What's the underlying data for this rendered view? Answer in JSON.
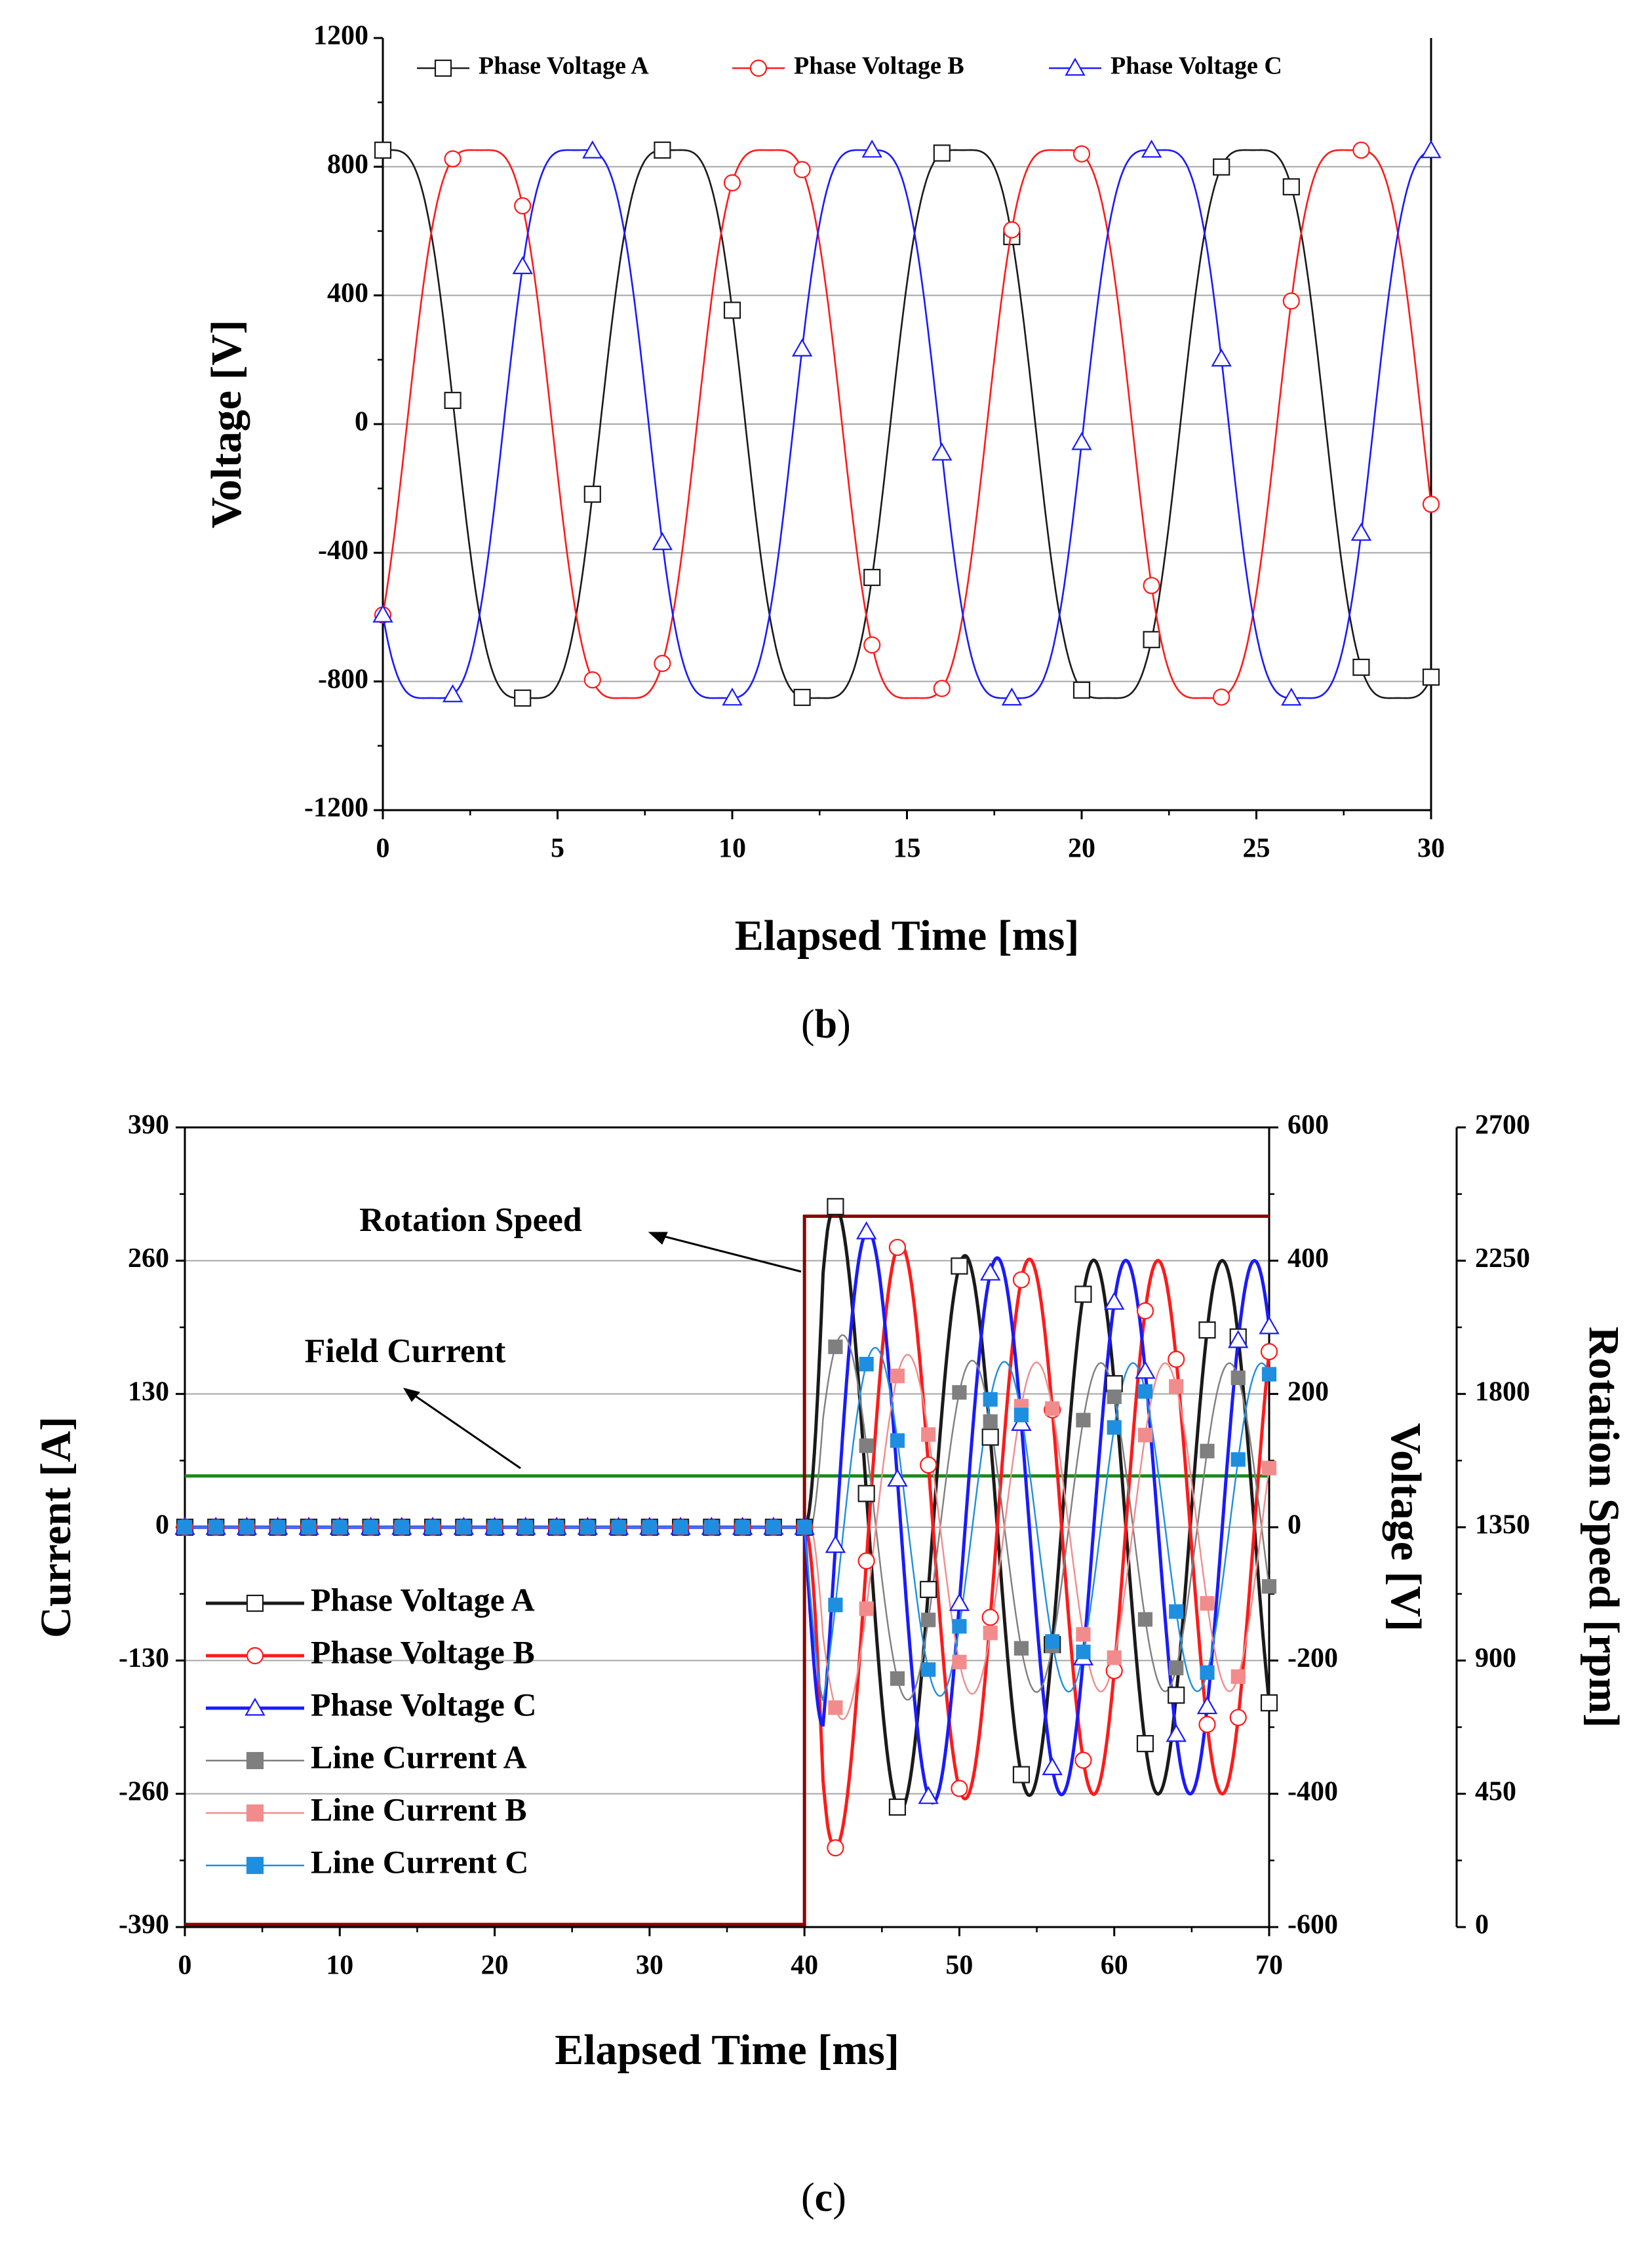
{
  "colors": {
    "black": "#1a1a1a",
    "red": "#ff1a1a",
    "blue": "#1a1aff",
    "lineGray": "#7f7f7f",
    "linePink": "#f28c8c",
    "lineCyan": "#1e8fe0",
    "speed": "#8b0000",
    "field": "#1a8a1a",
    "grid": "#a6a6a6"
  },
  "chart_data": [
    {
      "panel": "b",
      "caption": "b",
      "type": "line",
      "title": "",
      "xlabel": "Elapsed Time [ms]",
      "ylabel": "Voltage [V]",
      "xlim": [
        0,
        30
      ],
      "ylim": [
        -1200,
        1200
      ],
      "xticks": [
        "0",
        "5",
        "10",
        "15",
        "20",
        "25",
        "30"
      ],
      "yticks": [
        "-1200",
        "-800",
        "-400",
        "0",
        "400",
        "800",
        "1200"
      ],
      "grid": "horizontal",
      "legend_position": "top",
      "amplitude_V": 860,
      "period_ms": 8.3,
      "marker_interval_ms": 2,
      "series": [
        {
          "name": "Phase Voltage A",
          "marker": "square",
          "phase_deg": 0,
          "color": "black"
        },
        {
          "name": "Phase Voltage B",
          "marker": "circle",
          "phase_deg": -120,
          "color": "red"
        },
        {
          "name": "Phase Voltage C",
          "marker": "triangle",
          "phase_deg": 120,
          "color": "blue"
        }
      ]
    },
    {
      "panel": "c",
      "caption": "c",
      "type": "line",
      "title": "",
      "xlabel": "Elapsed Time [ms]",
      "ylabel": "Current [A]",
      "ylabel_right": "Voltage [V]",
      "ylabel_far_right": "Rotation Speed [rpm]",
      "xlim": [
        0,
        70
      ],
      "ylim": [
        -390,
        390
      ],
      "ylim_right": [
        -600,
        600
      ],
      "ylim_far_right": [
        0,
        2700
      ],
      "xticks": [
        "0",
        "10",
        "20",
        "30",
        "40",
        "50",
        "60",
        "70"
      ],
      "yticks": [
        "-390",
        "-260",
        "-130",
        "0",
        "130",
        "260",
        "390"
      ],
      "yticks_right": [
        "-600",
        "-400",
        "-200",
        "0",
        "200",
        "400",
        "600"
      ],
      "yticks_far_right": [
        "0",
        "450",
        "900",
        "1350",
        "1800",
        "2250",
        "2700"
      ],
      "grid": "horizontal",
      "legend_position": "bottom-left",
      "step_time_ms": 40,
      "period_ms": 8.3,
      "steady_voltage_amplitude_V": 400,
      "peak_voltage_V": 545,
      "steady_current_amplitude_A": 160,
      "field_current_A": 50,
      "rotation_speed_rpm": [
        0,
        2400
      ],
      "annotations": [
        "Rotation Speed",
        "Field Current"
      ],
      "series": [
        {
          "name": "Phase Voltage A",
          "marker": "open-square",
          "color": "black",
          "axis": "voltage"
        },
        {
          "name": "Phase Voltage B",
          "marker": "open-circle",
          "color": "red",
          "axis": "voltage"
        },
        {
          "name": "Phase Voltage C",
          "marker": "open-triangle",
          "color": "blue",
          "axis": "voltage"
        },
        {
          "name": "Line Current A",
          "marker": "filled-square",
          "color": "lineGray",
          "axis": "current"
        },
        {
          "name": "Line Current B",
          "marker": "filled-square",
          "color": "linePink",
          "axis": "current"
        },
        {
          "name": "Line Current C",
          "marker": "filled-square",
          "color": "lineCyan",
          "axis": "current"
        }
      ]
    }
  ]
}
